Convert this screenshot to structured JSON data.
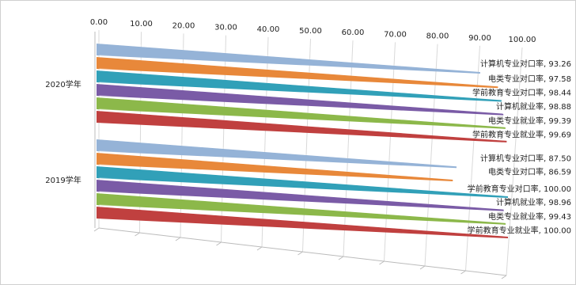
{
  "chart_data": {
    "type": "bar",
    "orientation": "horizontal",
    "categories": [
      "2020学年",
      "2019学年"
    ],
    "label_separator": ", ",
    "series": [
      {
        "name": "计算机专业对口率",
        "color": "#95b3d7",
        "values": [
          93.26,
          87.5
        ],
        "value_labels": [
          "93.26",
          "87.50"
        ]
      },
      {
        "name": "电类专业对口率",
        "color": "#e8883a",
        "values": [
          97.58,
          86.59
        ],
        "value_labels": [
          "97.58",
          "86.59"
        ]
      },
      {
        "name": "学前教育专业对口率",
        "color": "#31a0b8",
        "values": [
          98.44,
          100
        ],
        "value_labels": [
          "98.44",
          "100.00"
        ]
      },
      {
        "name": "计算机就业率",
        "color": "#7a5ba6",
        "values": [
          98.88,
          98.96
        ],
        "value_labels": [
          "98.88",
          "98.96"
        ]
      },
      {
        "name": "电类专业就业率",
        "color": "#8cb84a",
        "values": [
          99.39,
          99.43
        ],
        "value_labels": [
          "99.39",
          "99.43"
        ]
      },
      {
        "name": "学前教育专业就业率",
        "color": "#c0403f",
        "values": [
          99.69,
          100
        ],
        "value_labels": [
          "99.69",
          "100.00"
        ]
      }
    ],
    "xlim": [
      0,
      100
    ],
    "xticks": [
      {
        "value": 0,
        "label": "0.00"
      },
      {
        "value": 10,
        "label": "10.00"
      },
      {
        "value": 20,
        "label": "20.00"
      },
      {
        "value": 30,
        "label": "30.00"
      },
      {
        "value": 40,
        "label": "40.00"
      },
      {
        "value": 50,
        "label": "50.00"
      },
      {
        "value": 60,
        "label": "60.00"
      },
      {
        "value": 70,
        "label": "70.00"
      },
      {
        "value": 80,
        "label": "80.00"
      },
      {
        "value": 90,
        "label": "90.00"
      },
      {
        "value": 100,
        "label": "100.00"
      }
    ],
    "grid": true
  }
}
